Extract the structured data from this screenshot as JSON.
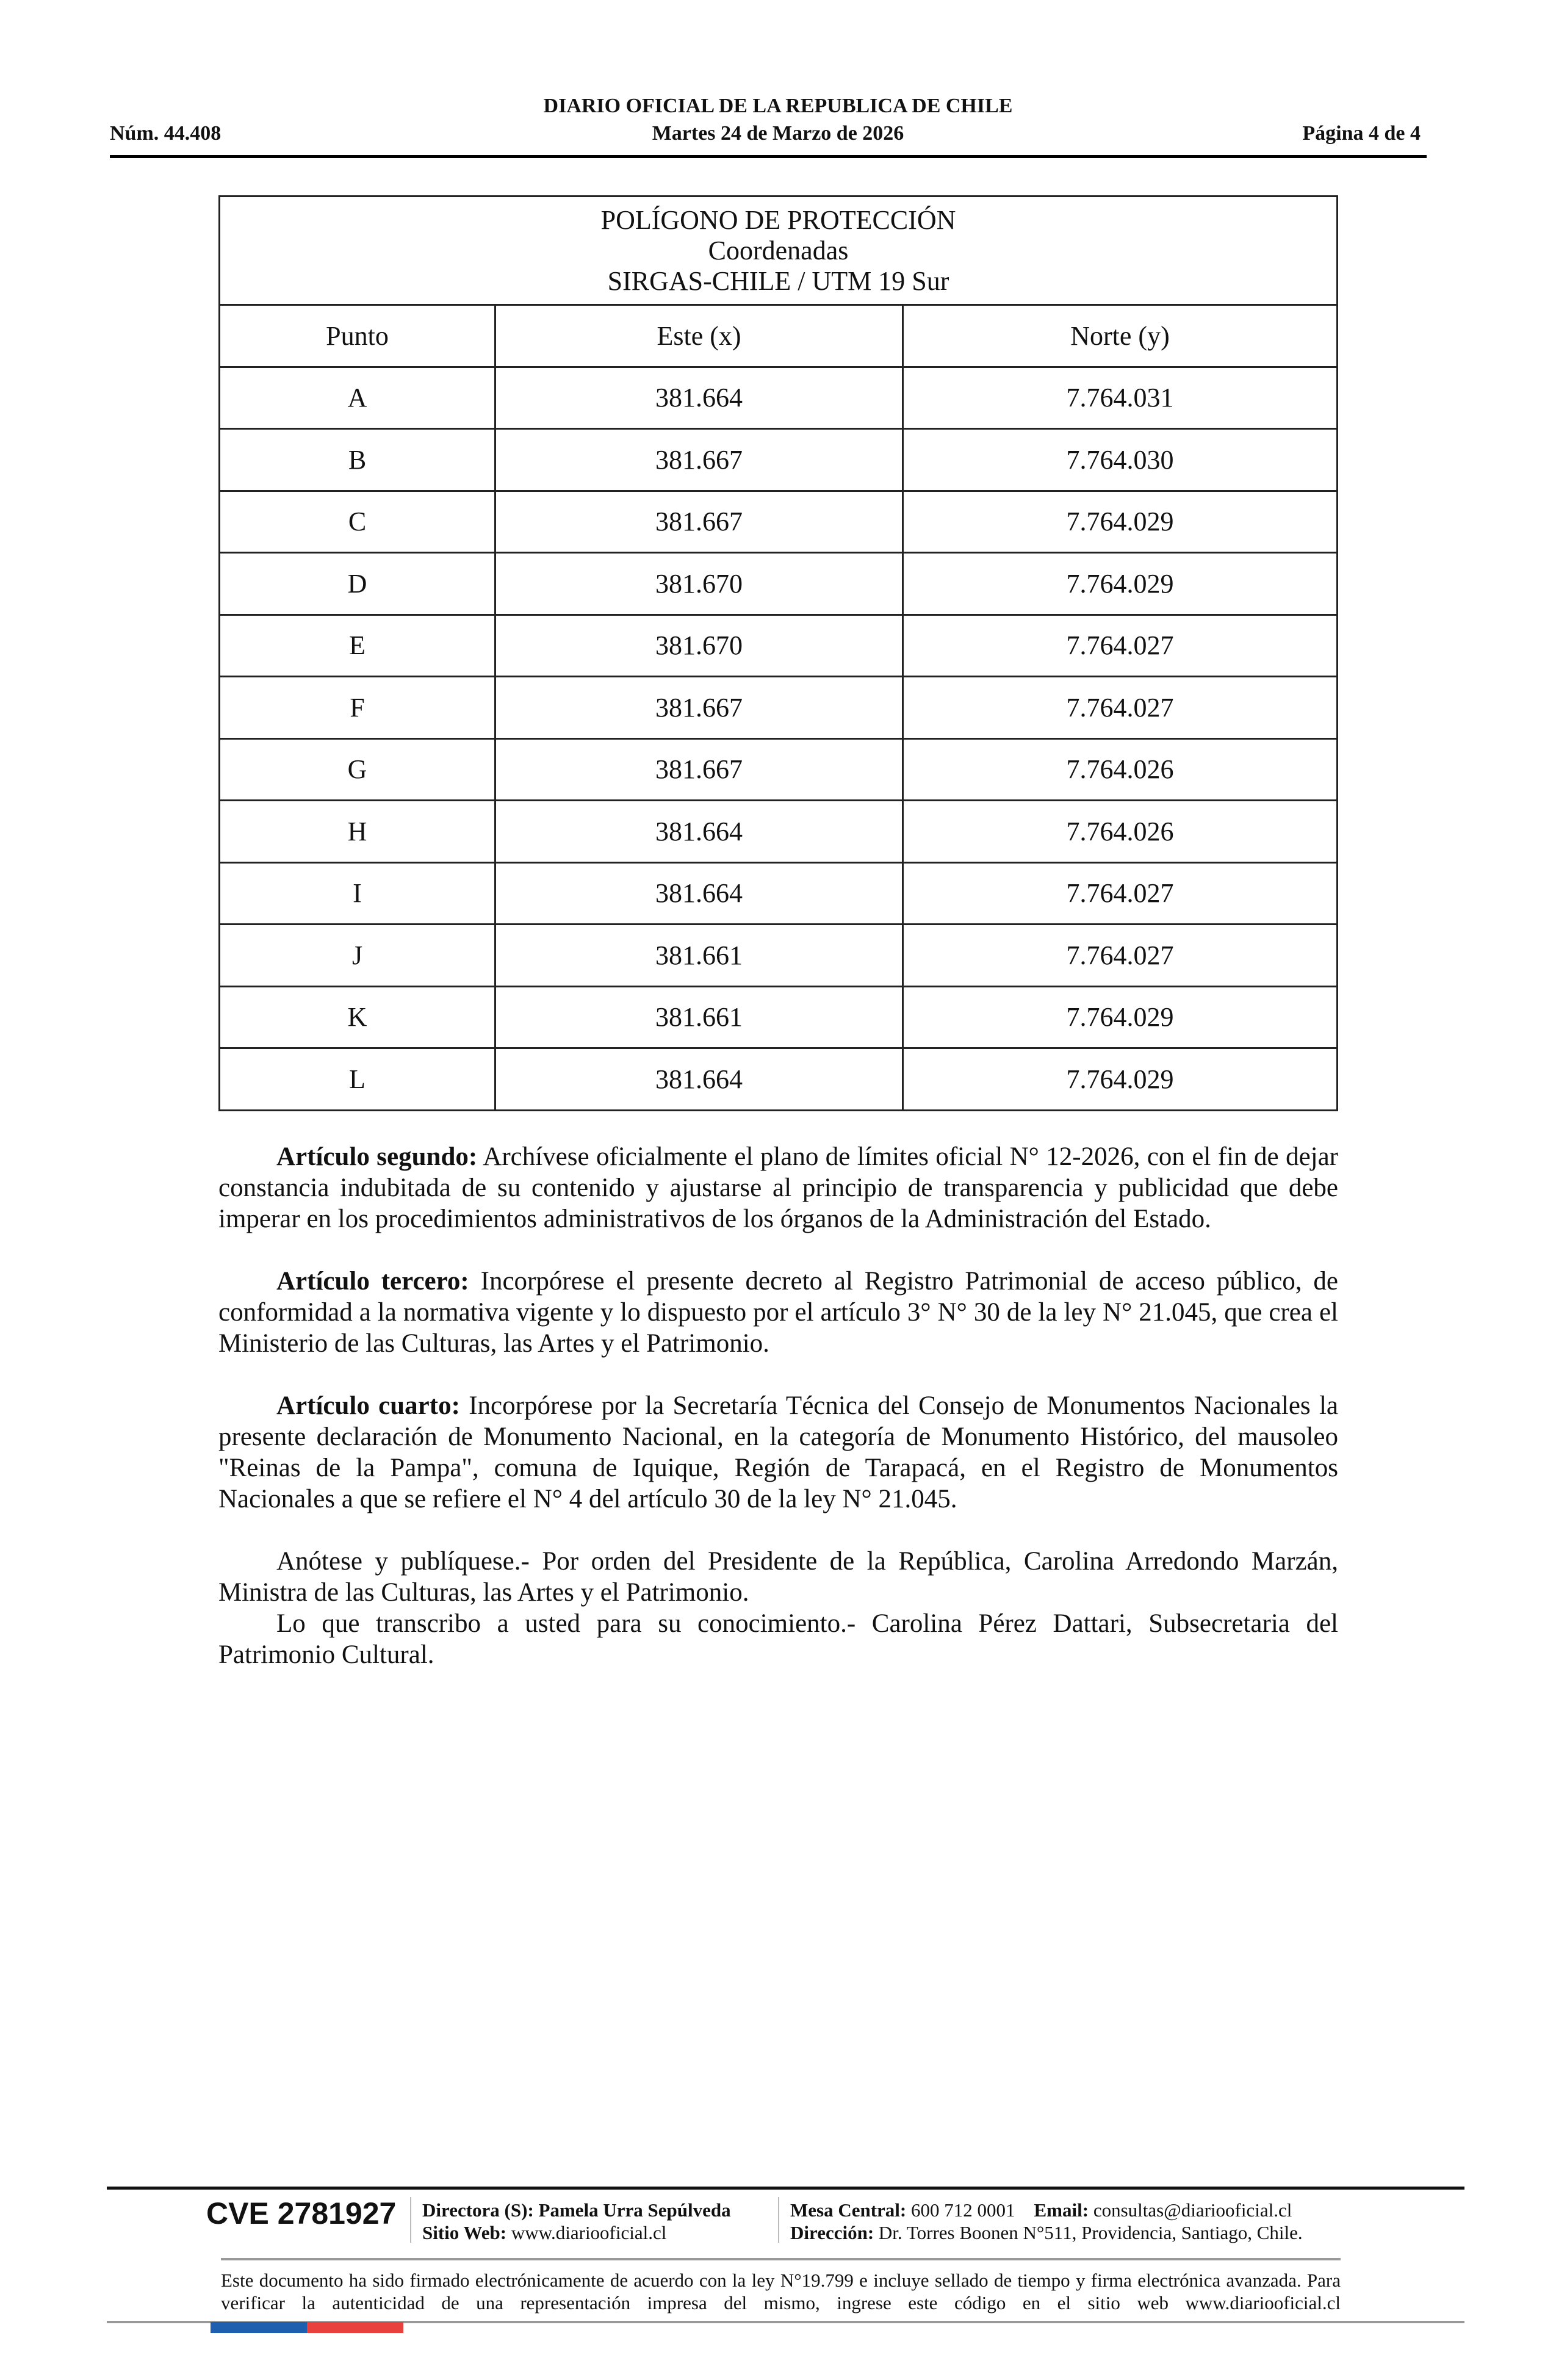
{
  "header": {
    "title": "DIARIO OFICIAL DE LA REPUBLICA DE CHILE",
    "number": "Núm. 44.408",
    "date": "Martes 24 de Marzo de 2026",
    "page": "Página 4 de 4"
  },
  "table": {
    "caption": [
      "POLÍGONO DE PROTECCIÓN",
      "Coordenadas",
      "SIRGAS-CHILE / UTM 19 Sur"
    ],
    "columns": [
      "Punto",
      "Este (x)",
      "Norte (y)"
    ],
    "rows": [
      [
        "A",
        "381.664",
        "7.764.031"
      ],
      [
        "B",
        "381.667",
        "7.764.030"
      ],
      [
        "C",
        "381.667",
        "7.764.029"
      ],
      [
        "D",
        "381.670",
        "7.764.029"
      ],
      [
        "E",
        "381.670",
        "7.764.027"
      ],
      [
        "F",
        "381.667",
        "7.764.027"
      ],
      [
        "G",
        "381.667",
        "7.764.026"
      ],
      [
        "H",
        "381.664",
        "7.764.026"
      ],
      [
        "I",
        "381.664",
        "7.764.027"
      ],
      [
        "J",
        "381.661",
        "7.764.027"
      ],
      [
        "K",
        "381.661",
        "7.764.029"
      ],
      [
        "L",
        "381.664",
        "7.764.029"
      ]
    ]
  },
  "body": {
    "p1_label": "Artículo segundo:",
    "p1_text": " Archívese oficialmente el plano de límites oficial N° 12-2026, con el fin de dejar constancia indubitada de su contenido y ajustarse al principio de transparencia y publicidad que debe imperar en los procedimientos administrativos de los órganos de la Administración del Estado.",
    "p2_label": "Artículo tercero:",
    "p2_text": "  Incorpórese el presente decreto al Registro Patrimonial de acceso público, de conformidad a la normativa vigente y lo dispuesto por el artículo 3° N° 30 de la ley N° 21.045, que crea el Ministerio de las Culturas, las Artes y el Patrimonio.",
    "p3_label": "Artículo cuarto:",
    "p3_text": "  Incorpórese por la Secretaría Técnica del Consejo de Monumentos Nacionales la presente declaración de Monumento Nacional, en la categoría de Monumento Histórico, del mausoleo \"Reinas de la Pampa\", comuna de Iquique, Región de Tarapacá, en el Registro de Monumentos Nacionales a que se refiere el N° 4 del artículo 30 de la ley N° 21.045.",
    "p4": "Anótese y publíquese.- Por orden del Presidente de la República, Carolina Arredondo Marzán, Ministra de las Culturas, las Artes y el Patrimonio.",
    "p5": "Lo que transcribo a usted para su conocimiento.- Carolina Pérez Dattari, Subsecretaria del Patrimonio Cultural."
  },
  "footer": {
    "cve": "CVE 2781927",
    "director_label": "Directora (S):",
    "director": "Pamela Urra Sepúlveda",
    "web_label": "Sitio Web:",
    "web": "www.diariooficial.cl",
    "phone_label": "Mesa Central:",
    "phone": "600 712 0001",
    "email_label": "Email:",
    "email": "consultas@diariooficial.cl",
    "address_label": "Dirección:",
    "address": "Dr. Torres Boonen N°511, Providencia, Santiago, Chile.",
    "disclaimer": "Este documento ha sido firmado electrónicamente de acuerdo con la ley N°19.799 e incluye sellado de tiempo y firma electrónica avanzada. Para verificar la autenticidad de una representación impresa del mismo, ingrese este código en el sitio web www.diariooficial.cl",
    "flag_colors": [
      "#1f5fb0",
      "#e8413e"
    ]
  }
}
